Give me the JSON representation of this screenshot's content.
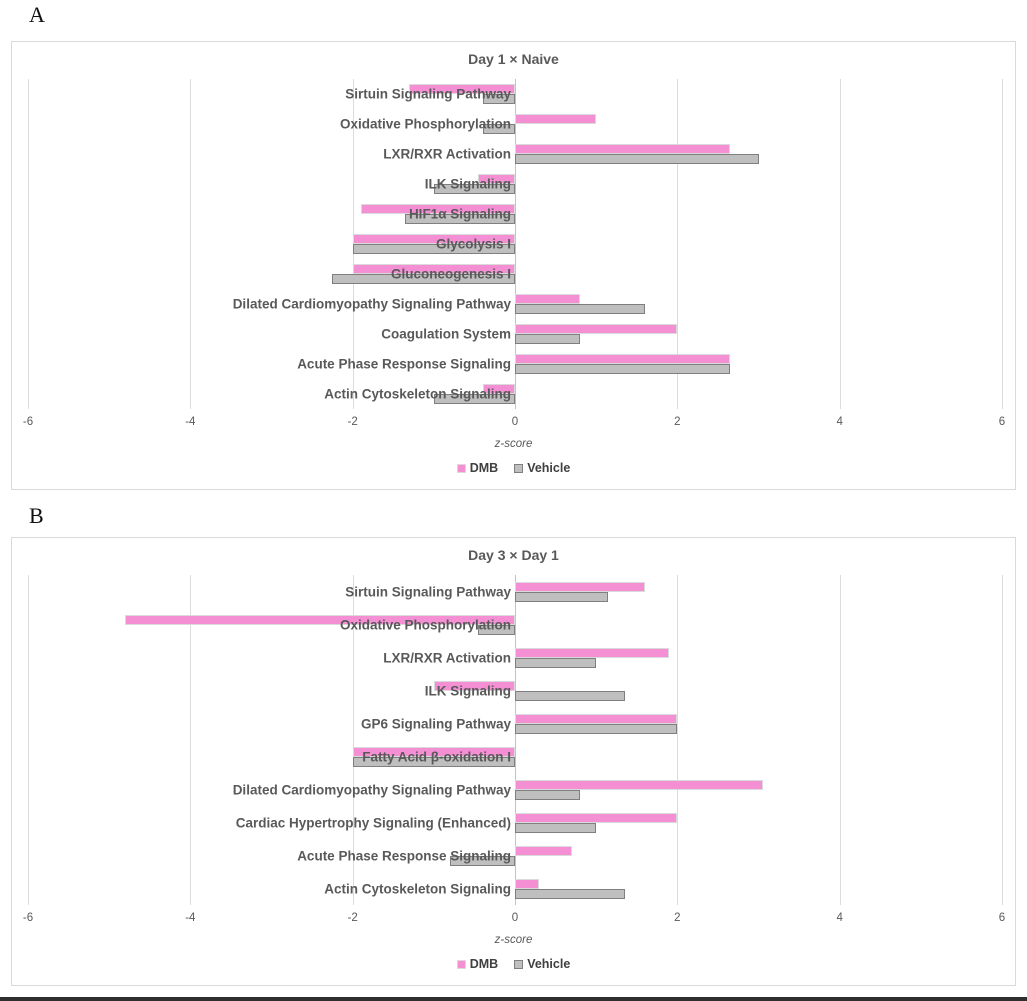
{
  "figure": {
    "panel_a_label": "A",
    "panel_b_label": "B"
  },
  "colors": {
    "dmb": "#F48FD4",
    "dmb_border": "#DADADA",
    "vehicle": "#BFBFBF",
    "vehicle_border": "#7F7F7F",
    "grid": "#DCDCDC",
    "text": "#595959"
  },
  "chart_data": [
    {
      "type": "bar",
      "orientation": "horizontal",
      "title": "Day 1 × Naive",
      "xlabel": "z-score",
      "xlim": [
        -6,
        6
      ],
      "xticks": [
        -6,
        -4,
        -2,
        0,
        2,
        4,
        6
      ],
      "grid": true,
      "legend_position": "bottom",
      "categories": [
        "Sirtuin Signaling Pathway",
        "Oxidative Phosphorylation",
        "LXR/RXR Activation",
        "ILK Signaling",
        "HIF1α Signaling",
        "Glycolysis I",
        "Gluconeogenesis I",
        "Dilated Cardiomyopathy Signaling Pathway",
        "Coagulation System",
        "Acute Phase Response Signaling",
        "Actin Cytoskeleton Signaling"
      ],
      "series": [
        {
          "name": "DMB",
          "values": [
            -1.3,
            1.0,
            2.65,
            -0.45,
            -1.9,
            -2.0,
            -2.0,
            0.8,
            2.0,
            2.65,
            -0.4
          ]
        },
        {
          "name": "Vehicle",
          "values": [
            -0.4,
            -0.4,
            3.0,
            -1.0,
            -1.35,
            -2.0,
            -2.25,
            1.6,
            0.8,
            2.65,
            -1.0
          ]
        }
      ]
    },
    {
      "type": "bar",
      "orientation": "horizontal",
      "title": "Day 3 × Day 1",
      "xlabel": "z-score",
      "xlim": [
        -6,
        6
      ],
      "xticks": [
        -6,
        -4,
        -2,
        0,
        2,
        4,
        6
      ],
      "grid": true,
      "legend_position": "bottom",
      "categories": [
        "Sirtuin Signaling Pathway",
        "Oxidative Phosphorylation",
        "LXR/RXR Activation",
        "ILK Signaling",
        "GP6 Signaling Pathway",
        "Fatty Acid β-oxidation I",
        "Dilated Cardiomyopathy Signaling Pathway",
        "Cardiac Hypertrophy Signaling (Enhanced)",
        "Acute Phase Response Signaling",
        "Actin Cytoskeleton Signaling"
      ],
      "series": [
        {
          "name": "DMB",
          "values": [
            1.6,
            -4.8,
            1.9,
            -1.0,
            2.0,
            -2.0,
            3.05,
            2.0,
            0.7,
            0.3
          ]
        },
        {
          "name": "Vehicle",
          "values": [
            1.15,
            -0.45,
            1.0,
            1.35,
            2.0,
            -2.0,
            0.8,
            1.0,
            -0.8,
            1.35
          ]
        }
      ]
    }
  ]
}
